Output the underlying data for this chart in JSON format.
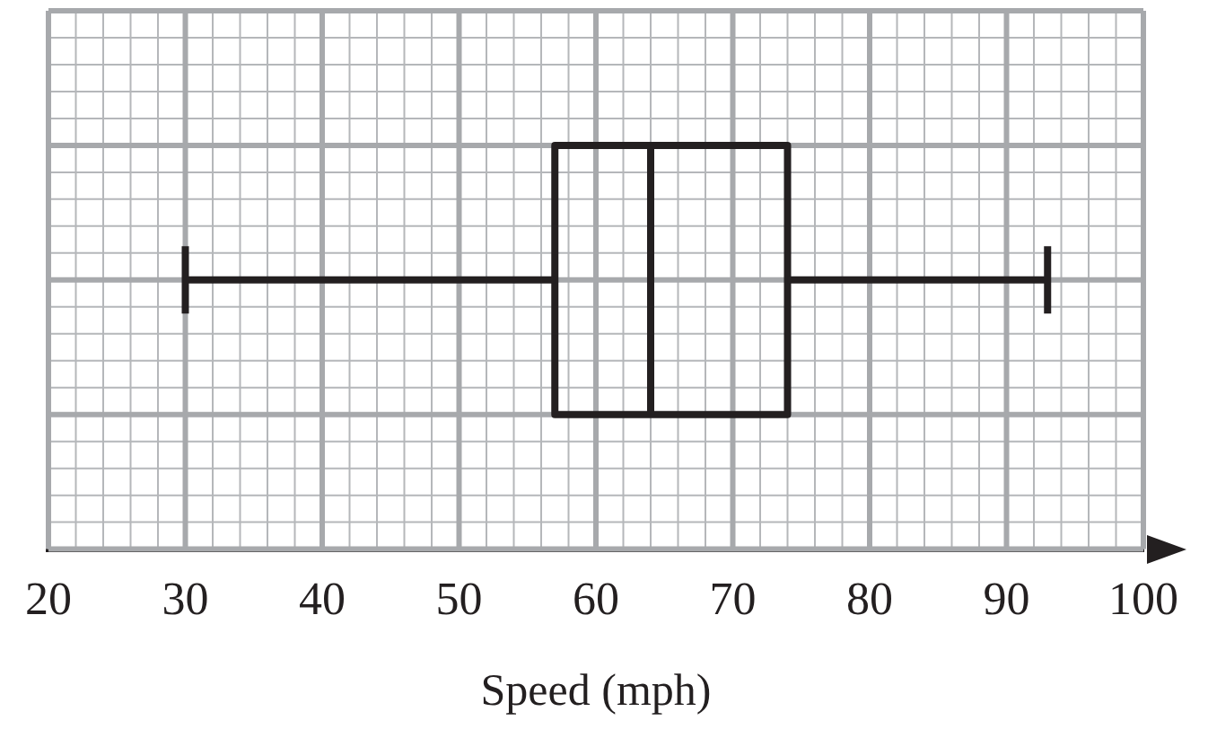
{
  "chart_data": {
    "type": "box",
    "orientation": "horizontal",
    "categories": [
      null
    ],
    "boxes": [
      {
        "low": 30,
        "q1": 57,
        "median": 64,
        "q3": 74,
        "high": 93
      }
    ],
    "color": "#231f20",
    "xlim": [
      20,
      100
    ],
    "xticks": [
      20,
      30,
      40,
      50,
      60,
      70,
      80,
      90,
      100
    ],
    "xlabel": "Speed (mph)",
    "grid": true,
    "tick_labels": "x",
    "legend": false
  }
}
